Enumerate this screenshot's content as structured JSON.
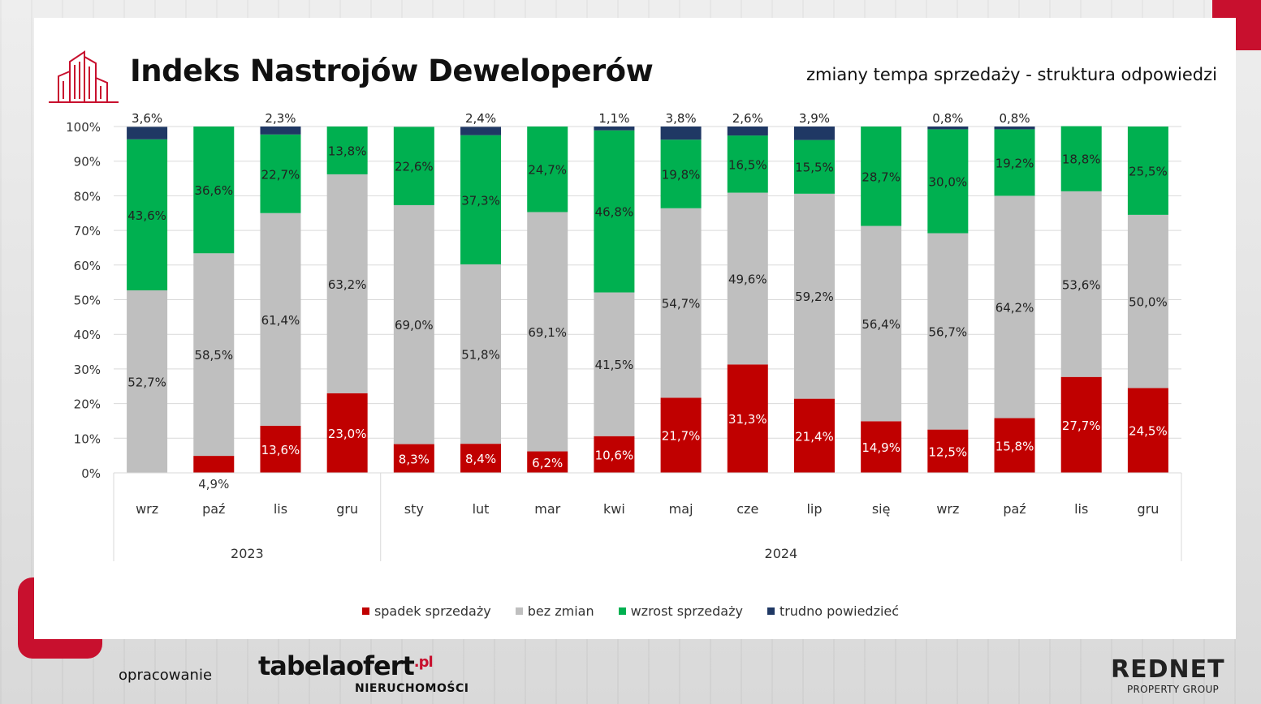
{
  "header": {
    "title": "Indeks Nastrojów Deweloperów",
    "subtitle": "zmiany tempa sprzedaży - struktura odpowiedzi"
  },
  "footer": {
    "prepared_by": "opracowanie",
    "brand1_name": "tabelaofert",
    "brand1_suffix": ".pl",
    "brand1_sub": "NIERUCHOMOŚCI",
    "brand2_name": "REDNET",
    "brand2_sub": "PROPERTY GROUP"
  },
  "colors": {
    "accent": "#c8102e",
    "spadek": "#c00000",
    "bez_zmian": "#bfbfbf",
    "wzrost": "#00b050",
    "trudno": "#1f3864"
  },
  "chart_data": {
    "type": "bar",
    "stacked": true,
    "categories": [
      "wrz",
      "paź",
      "lis",
      "gru",
      "sty",
      "lut",
      "mar",
      "kwi",
      "maj",
      "cze",
      "lip",
      "się",
      "wrz",
      "paź",
      "lis",
      "gru"
    ],
    "groups": [
      {
        "label": "2023",
        "count": 4
      },
      {
        "label": "2024",
        "count": 12
      }
    ],
    "ylim": [
      0,
      100
    ],
    "yticks": [
      "0%",
      "10%",
      "20%",
      "30%",
      "40%",
      "50%",
      "60%",
      "70%",
      "80%",
      "90%",
      "100%"
    ],
    "grid": true,
    "legend_position": "bottom",
    "series": [
      {
        "name": "spadek sprzedaży",
        "color": "#c00000",
        "values": [
          0,
          4.9,
          13.6,
          23.0,
          8.3,
          8.4,
          6.2,
          10.6,
          21.7,
          31.3,
          21.4,
          14.9,
          12.5,
          15.8,
          27.7,
          24.5
        ],
        "labels": [
          "",
          "4,9%",
          "13,6%",
          "23,0%",
          "8,3%",
          "8,4%",
          "6,2%",
          "10,6%",
          "21,7%",
          "31,3%",
          "21,4%",
          "14,9%",
          "12,5%",
          "15,8%",
          "27,7%",
          "24,5%"
        ]
      },
      {
        "name": "bez zmian",
        "color": "#bfbfbf",
        "values": [
          52.7,
          58.5,
          61.4,
          63.2,
          69.0,
          51.8,
          69.1,
          41.5,
          54.7,
          49.6,
          59.2,
          56.4,
          56.7,
          64.2,
          53.6,
          50.0
        ],
        "labels": [
          "52,7%",
          "58,5%",
          "61,4%",
          "63,2%",
          "69,0%",
          "51,8%",
          "69,1%",
          "41,5%",
          "54,7%",
          "49,6%",
          "59,2%",
          "56,4%",
          "56,7%",
          "64,2%",
          "53,6%",
          "50,0%"
        ]
      },
      {
        "name": "wzrost sprzedaży",
        "color": "#00b050",
        "values": [
          43.6,
          36.6,
          22.7,
          13.8,
          22.6,
          37.3,
          24.7,
          46.8,
          19.8,
          16.5,
          15.5,
          28.7,
          30.0,
          19.2,
          18.8,
          25.5
        ],
        "labels": [
          "43,6%",
          "36,6%",
          "22,7%",
          "13,8%",
          "22,6%",
          "37,3%",
          "24,7%",
          "46,8%",
          "19,8%",
          "16,5%",
          "15,5%",
          "28,7%",
          "30,0%",
          "19,2%",
          "18,8%",
          "25,5%"
        ]
      },
      {
        "name": "trudno powiedzieć",
        "color": "#1f3864",
        "values": [
          3.6,
          0,
          2.3,
          0,
          0,
          2.4,
          0,
          1.1,
          3.8,
          2.6,
          3.9,
          0,
          0.8,
          0.8,
          0,
          0
        ],
        "labels": [
          "3,6%",
          "",
          "2,3%",
          "",
          "",
          "2,4%",
          "",
          "1,1%",
          "3,8%",
          "2,6%",
          "3,9%",
          "",
          "0,8%",
          "0,8%",
          "",
          ""
        ]
      }
    ]
  }
}
